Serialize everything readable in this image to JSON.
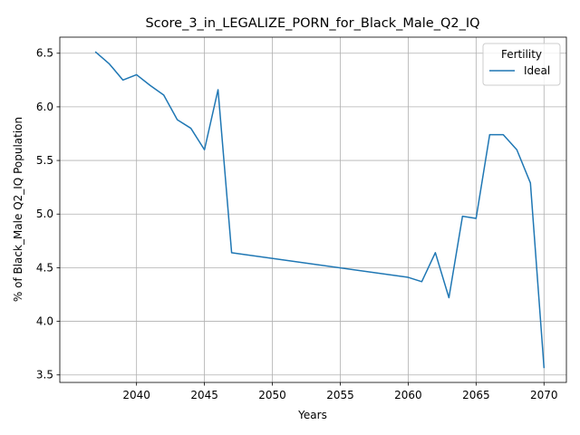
{
  "chart_data": {
    "type": "line",
    "title": "Score_3_in_LEGALIZE_PORN_for_Black_Male_Q2_IQ",
    "xlabel": "Years",
    "ylabel": "% of Black_Male Q2_IQ Population",
    "xlim": [
      2034.35,
      2071.65
    ],
    "ylim": [
      3.43,
      6.65
    ],
    "x_ticks": [
      2040,
      2045,
      2050,
      2055,
      2060,
      2065,
      2070
    ],
    "y_ticks": [
      3.5,
      4.0,
      4.5,
      5.0,
      5.5,
      6.0,
      6.5
    ],
    "x_tick_labels": [
      "2040",
      "2045",
      "2050",
      "2055",
      "2060",
      "2065",
      "2070"
    ],
    "y_tick_labels": [
      "3.5",
      "4.0",
      "4.5",
      "5.0",
      "5.5",
      "6.0",
      "6.5"
    ],
    "grid": true,
    "legend": {
      "title": "Fertility",
      "placement": "upper-right"
    },
    "series": [
      {
        "name": "Ideal",
        "color": "#1f77b4",
        "points": [
          [
            2037,
            6.51
          ],
          [
            2038,
            6.4
          ],
          [
            2039,
            6.25
          ],
          [
            2040,
            6.3
          ],
          [
            2041,
            6.2
          ],
          [
            2042,
            6.11
          ],
          [
            2043,
            5.88
          ],
          [
            2044,
            5.8
          ],
          [
            2045,
            5.6
          ],
          [
            2046,
            6.16
          ],
          [
            2047,
            4.64
          ],
          [
            2060,
            4.41
          ],
          [
            2061,
            4.37
          ],
          [
            2062,
            4.64
          ],
          [
            2063,
            4.22
          ],
          [
            2064,
            4.98
          ],
          [
            2065,
            4.96
          ],
          [
            2066,
            5.74
          ],
          [
            2067,
            5.74
          ],
          [
            2068,
            5.6
          ],
          [
            2069,
            5.29
          ],
          [
            2070,
            3.57
          ]
        ]
      }
    ]
  }
}
